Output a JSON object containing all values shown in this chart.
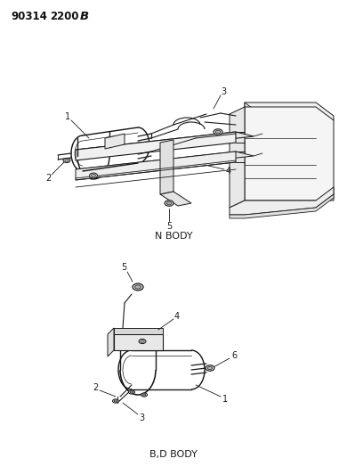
{
  "title_part1": "90314",
  "title_part2": "2200",
  "title_part3": "B",
  "background_color": "#ffffff",
  "line_color": "#1a1a1a",
  "section1_label": "N BODY",
  "section2_label": "B,D BODY",
  "fig_width": 3.99,
  "fig_height": 5.33,
  "dpi": 100
}
